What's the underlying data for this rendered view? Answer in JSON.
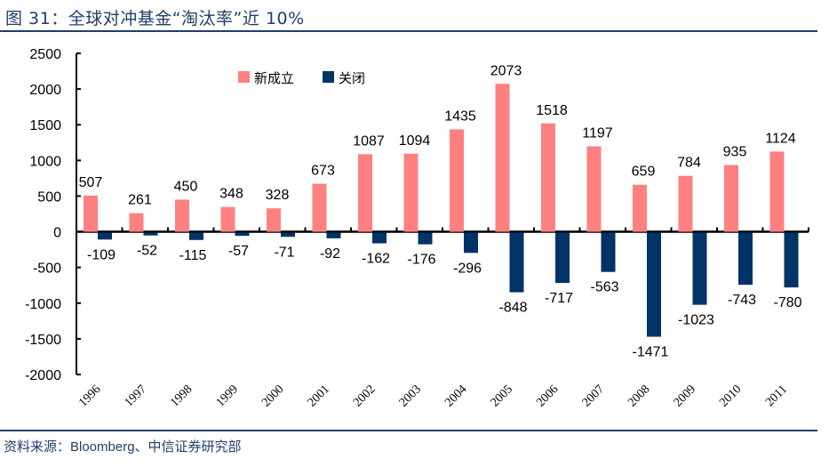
{
  "header": {
    "title": "图 31：全球对冲基金“淘汰率”近 10%"
  },
  "footer": {
    "source": "资料来源：Bloomberg、中信证券研究部"
  },
  "chart_data": {
    "type": "bar",
    "title": "图 31：全球对冲基金“淘汰率”近 10%",
    "xlabel": "",
    "ylabel": "",
    "ylim": [
      -2000,
      2500
    ],
    "yticks": [
      2500,
      2000,
      1500,
      1000,
      500,
      0,
      -500,
      -1000,
      -1500,
      -2000
    ],
    "categories": [
      "1996",
      "1997",
      "1998",
      "1999",
      "2000",
      "2001",
      "2002",
      "2003",
      "2004",
      "2005",
      "2006",
      "2007",
      "2008",
      "2009",
      "2010",
      "2011"
    ],
    "series": [
      {
        "name": "新成立",
        "color": "#ff8080",
        "values": [
          507,
          261,
          450,
          348,
          328,
          673,
          1087,
          1094,
          1435,
          2073,
          1518,
          1197,
          659,
          784,
          935,
          1124
        ]
      },
      {
        "name": "关闭",
        "color": "#003366",
        "values": [
          -109,
          -52,
          -115,
          -57,
          -71,
          -92,
          -162,
          -176,
          -296,
          -848,
          -717,
          -563,
          -1471,
          -1023,
          -743,
          -780
        ]
      }
    ],
    "legend": {
      "position": "top-center",
      "entries": [
        "新成立",
        "关闭"
      ]
    },
    "grid": false,
    "data_labels": true
  }
}
